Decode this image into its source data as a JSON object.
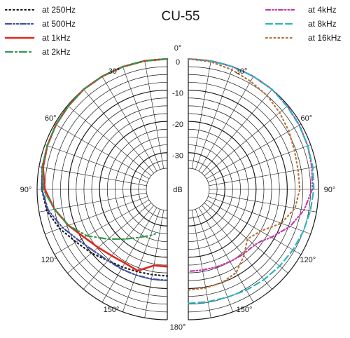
{
  "chart_data": {
    "type": "polar",
    "title": "CU-55",
    "unit_label": "dB",
    "radial_ticks": [
      {
        "label": "0",
        "value": 0
      },
      {
        "label": "-10",
        "value": -10
      },
      {
        "label": "-20",
        "value": -20
      },
      {
        "label": "-30",
        "value": -30
      }
    ],
    "rlim": [
      -35,
      0
    ],
    "angle_ticks": [
      {
        "label": "0°",
        "angle": 0
      },
      {
        "label": "30°",
        "angle": 30,
        "side": "left"
      },
      {
        "label": "60°",
        "angle": 60,
        "side": "left"
      },
      {
        "label": "90°",
        "angle": 90,
        "side": "left"
      },
      {
        "label": "120°",
        "angle": 120,
        "side": "left"
      },
      {
        "label": "150°",
        "angle": 150,
        "side": "left"
      },
      {
        "label": "180°",
        "angle": 180
      },
      {
        "label": "30°",
        "angle": 30,
        "side": "right"
      },
      {
        "label": "60°",
        "angle": 60,
        "side": "right"
      },
      {
        "label": "90°",
        "angle": 90,
        "side": "right"
      },
      {
        "label": "120°",
        "angle": 120,
        "side": "right"
      },
      {
        "label": "150°",
        "angle": 150,
        "side": "right"
      }
    ],
    "legend_left": [
      "at 250Hz",
      "at 500Hz",
      "at 1kHz",
      "at 2kHz"
    ],
    "legend_right": [
      "at 4kHz",
      "at 8kHz",
      "at 16kHz"
    ],
    "series": [
      {
        "name": "at 250Hz",
        "side": "left",
        "color": "#1a1a1a",
        "dash": "1.5 4",
        "points": [
          [
            0,
            0
          ],
          [
            10,
            0
          ],
          [
            20,
            0
          ],
          [
            30,
            0
          ],
          [
            40,
            0
          ],
          [
            50,
            -0.3
          ],
          [
            60,
            -0.5
          ],
          [
            70,
            -0.8
          ],
          [
            80,
            -1
          ],
          [
            90,
            -1.5
          ],
          [
            100,
            -2.5
          ],
          [
            110,
            -5
          ],
          [
            120,
            -8
          ],
          [
            130,
            -10
          ],
          [
            140,
            -12
          ],
          [
            150,
            -13
          ],
          [
            160,
            -13.7
          ],
          [
            170,
            -14
          ],
          [
            180,
            -14
          ]
        ]
      },
      {
        "name": "at 500Hz",
        "side": "left",
        "color": "#3b4fa6",
        "dash": "8 3 2 3 2 3",
        "points": [
          [
            0,
            0
          ],
          [
            10,
            0
          ],
          [
            20,
            0
          ],
          [
            30,
            0
          ],
          [
            40,
            0
          ],
          [
            50,
            -0.3
          ],
          [
            60,
            -0.5
          ],
          [
            70,
            -0.8
          ],
          [
            80,
            -1
          ],
          [
            90,
            -1.5
          ],
          [
            100,
            -3
          ],
          [
            110,
            -6
          ],
          [
            120,
            -9
          ],
          [
            130,
            -11
          ],
          [
            140,
            -12
          ],
          [
            150,
            -12.3
          ],
          [
            160,
            -12.5
          ],
          [
            170,
            -12.6
          ],
          [
            180,
            -12.6
          ]
        ]
      },
      {
        "name": "at 1kHz",
        "side": "left",
        "color": "#e3261b",
        "dash": "",
        "points": [
          [
            0,
            0
          ],
          [
            10,
            0
          ],
          [
            20,
            0
          ],
          [
            30,
            0
          ],
          [
            40,
            0
          ],
          [
            50,
            -0.3
          ],
          [
            60,
            -0.5
          ],
          [
            70,
            -0.8
          ],
          [
            80,
            -1.3
          ],
          [
            90,
            -2.5
          ],
          [
            100,
            -5
          ],
          [
            110,
            -8
          ],
          [
            120,
            -11
          ],
          [
            130,
            -12.8
          ],
          [
            140,
            -14
          ],
          [
            150,
            -14.5
          ],
          [
            160,
            -14
          ],
          [
            170,
            -17
          ],
          [
            180,
            -17
          ]
        ]
      },
      {
        "name": "at 2kHz",
        "side": "left",
        "color": "#2f9a4f",
        "dash": "10 4 2 4",
        "points": [
          [
            0,
            0
          ],
          [
            10,
            0
          ],
          [
            20,
            0
          ],
          [
            30,
            0
          ],
          [
            40,
            0
          ],
          [
            50,
            -0.3
          ],
          [
            60,
            -0.5
          ],
          [
            70,
            -0.8
          ],
          [
            80,
            -1
          ],
          [
            90,
            -2
          ],
          [
            100,
            -5
          ],
          [
            110,
            -8
          ],
          [
            120,
            -12
          ],
          [
            130,
            -17
          ],
          [
            140,
            -21
          ],
          [
            150,
            -24
          ],
          [
            160,
            -26
          ],
          [
            165,
            -27
          ]
        ]
      },
      {
        "name": "at 4kHz",
        "side": "right",
        "color": "#c13aa8",
        "dash": "6 3 1.5 3 1.5 3",
        "points": [
          [
            0,
            0
          ],
          [
            10,
            0
          ],
          [
            20,
            0
          ],
          [
            30,
            0
          ],
          [
            40,
            0
          ],
          [
            50,
            -0.3
          ],
          [
            60,
            -0.6
          ],
          [
            70,
            -1
          ],
          [
            80,
            -1.5
          ],
          [
            90,
            -2
          ],
          [
            100,
            -4
          ],
          [
            110,
            -7
          ],
          [
            120,
            -11
          ],
          [
            125,
            -13
          ],
          [
            130,
            -14
          ],
          [
            140,
            -14.5
          ],
          [
            150,
            -15
          ],
          [
            160,
            -15.3
          ],
          [
            170,
            -15.5
          ],
          [
            180,
            -15.5
          ]
        ]
      },
      {
        "name": "at 8kHz",
        "side": "right",
        "color": "#2cb5bd",
        "dash": "9 5",
        "points": [
          [
            0,
            0
          ],
          [
            10,
            0
          ],
          [
            20,
            0
          ],
          [
            30,
            0
          ],
          [
            40,
            0
          ],
          [
            50,
            -0.4
          ],
          [
            60,
            -0.7
          ],
          [
            70,
            -1
          ],
          [
            80,
            -1.2
          ],
          [
            90,
            -1.5
          ],
          [
            100,
            -2
          ],
          [
            110,
            -2.5
          ],
          [
            120,
            -3
          ],
          [
            130,
            -3.5
          ],
          [
            140,
            -4
          ],
          [
            150,
            -4.5
          ],
          [
            160,
            -5
          ],
          [
            170,
            -5.2
          ],
          [
            180,
            -5.2
          ]
        ]
      },
      {
        "name": "at 16kHz",
        "side": "right",
        "color": "#b8733a",
        "dash": "1.8 4",
        "points": [
          [
            0,
            0
          ],
          [
            10,
            -0.3
          ],
          [
            20,
            -1
          ],
          [
            30,
            -1.8
          ],
          [
            40,
            -2.5
          ],
          [
            50,
            -3.5
          ],
          [
            60,
            -4.5
          ],
          [
            70,
            -5.5
          ],
          [
            80,
            -6
          ],
          [
            90,
            -6
          ],
          [
            100,
            -7
          ],
          [
            110,
            -10
          ],
          [
            120,
            -15
          ],
          [
            130,
            -17
          ],
          [
            140,
            -14
          ],
          [
            150,
            -11
          ],
          [
            160,
            -10
          ],
          [
            170,
            -9.7
          ],
          [
            180,
            -9.5
          ]
        ]
      }
    ]
  }
}
